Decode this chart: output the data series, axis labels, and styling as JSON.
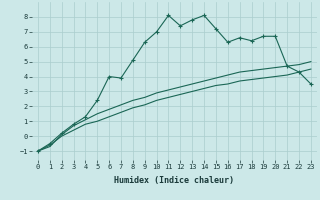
{
  "xlabel": "Humidex (Indice chaleur)",
  "background_color": "#cce8e8",
  "grid_color": "#aacece",
  "line_color": "#1a6655",
  "xlim": [
    -0.5,
    23.5
  ],
  "ylim": [
    -1.6,
    9.0
  ],
  "xticks": [
    0,
    1,
    2,
    3,
    4,
    5,
    6,
    7,
    8,
    9,
    10,
    11,
    12,
    13,
    14,
    15,
    16,
    17,
    18,
    19,
    20,
    21,
    22,
    23
  ],
  "yticks": [
    -1,
    0,
    1,
    2,
    3,
    4,
    5,
    6,
    7,
    8
  ],
  "series1_x": [
    0,
    1,
    2,
    3,
    4,
    5,
    6,
    7,
    8,
    9,
    10,
    11,
    12,
    13,
    14,
    15,
    16,
    17,
    18,
    19,
    20,
    21,
    22,
    23
  ],
  "series1_y": [
    -1.0,
    -0.7,
    0.1,
    0.7,
    1.1,
    1.5,
    1.8,
    2.1,
    2.4,
    2.6,
    2.9,
    3.1,
    3.3,
    3.5,
    3.7,
    3.9,
    4.1,
    4.3,
    4.4,
    4.5,
    4.6,
    4.7,
    4.8,
    5.0
  ],
  "series2_x": [
    0,
    1,
    2,
    3,
    4,
    5,
    6,
    7,
    8,
    9,
    10,
    11,
    12,
    13,
    14,
    15,
    16,
    17,
    18,
    19,
    20,
    21,
    22,
    23
  ],
  "series2_y": [
    -1.0,
    -0.6,
    0.0,
    0.4,
    0.8,
    1.0,
    1.3,
    1.6,
    1.9,
    2.1,
    2.4,
    2.6,
    2.8,
    3.0,
    3.2,
    3.4,
    3.5,
    3.7,
    3.8,
    3.9,
    4.0,
    4.1,
    4.3,
    4.5
  ],
  "series3_x": [
    0,
    1,
    2,
    3,
    4,
    5,
    6,
    7,
    8,
    9,
    10,
    11,
    12,
    13,
    14,
    15,
    16,
    17,
    18,
    19,
    20,
    21,
    22,
    23
  ],
  "series3_y": [
    -1.0,
    -0.5,
    0.2,
    0.8,
    1.3,
    2.4,
    4.0,
    3.9,
    5.1,
    6.3,
    7.0,
    8.1,
    7.4,
    7.8,
    8.1,
    7.2,
    6.3,
    6.6,
    6.4,
    6.7,
    6.7,
    4.7,
    4.3,
    3.5
  ],
  "markersize": 2.5,
  "linewidth": 0.8,
  "tick_fontsize": 5.0,
  "xlabel_fontsize": 6.0
}
